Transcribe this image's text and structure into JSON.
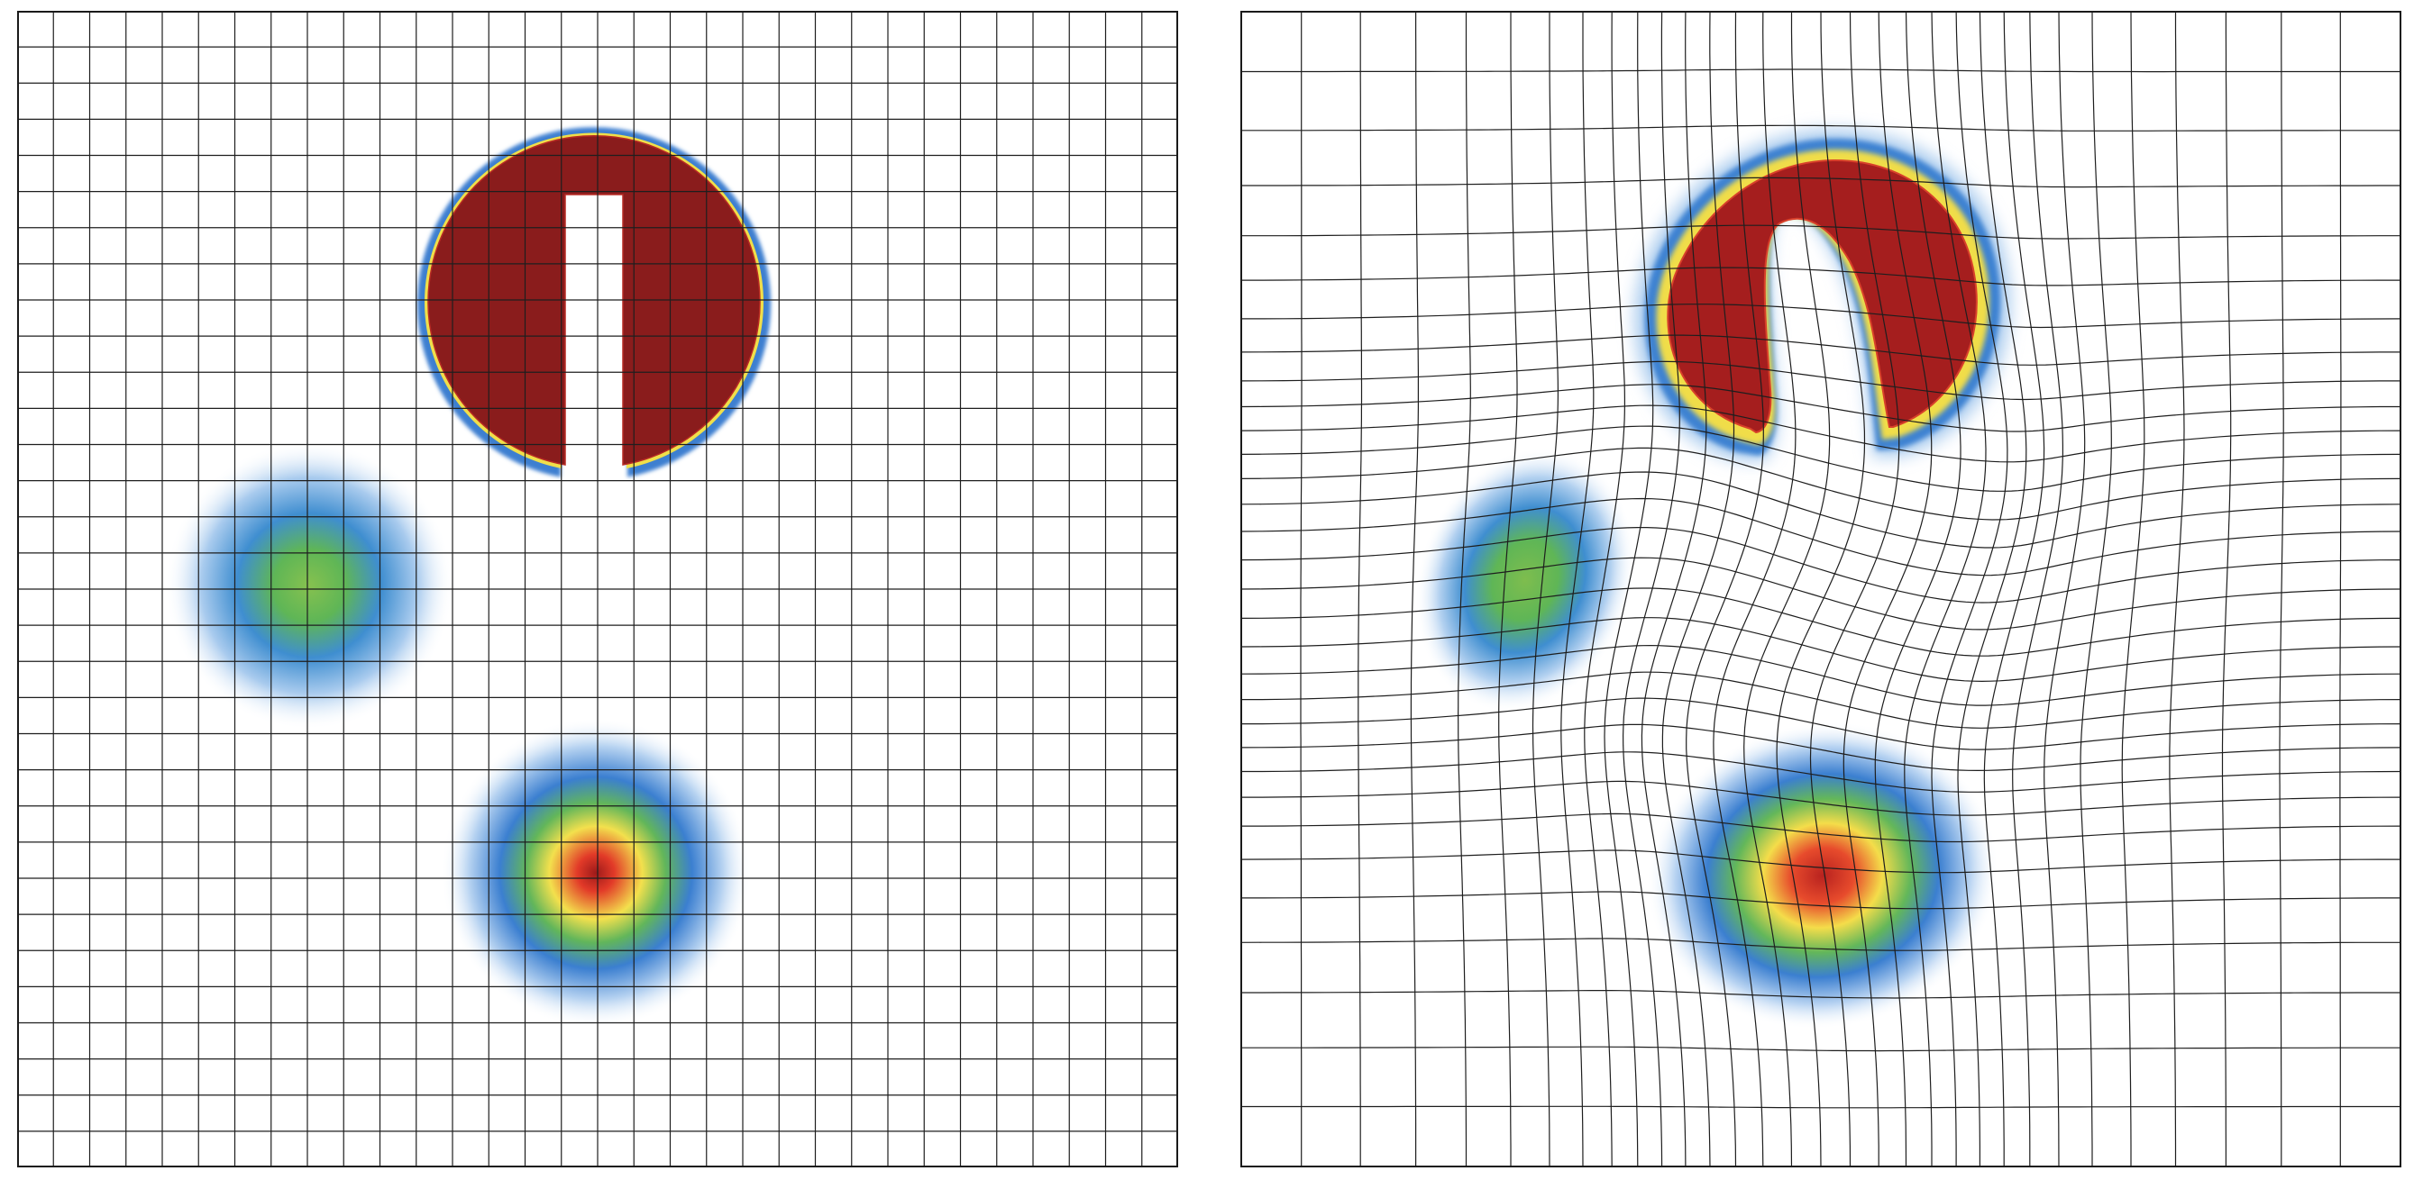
{
  "figure": {
    "panels": [
      {
        "id": "initial-mesh",
        "mesh": "uniform",
        "cells": 32
      },
      {
        "id": "adapted-mesh",
        "mesh": "deformed",
        "cells": 32
      }
    ],
    "features": [
      {
        "name": "slotted-disk",
        "profile": "step",
        "peak": 1.0
      },
      {
        "name": "small-hump",
        "profile": "gaussian",
        "peak": 0.45
      },
      {
        "name": "cone-hump",
        "profile": "gaussian",
        "peak": 1.0
      }
    ],
    "colormap": [
      "#ffffff",
      "#3d7fd1",
      "#59b55a",
      "#f0e24a",
      "#e23a28",
      "#8a1c1c"
    ]
  }
}
